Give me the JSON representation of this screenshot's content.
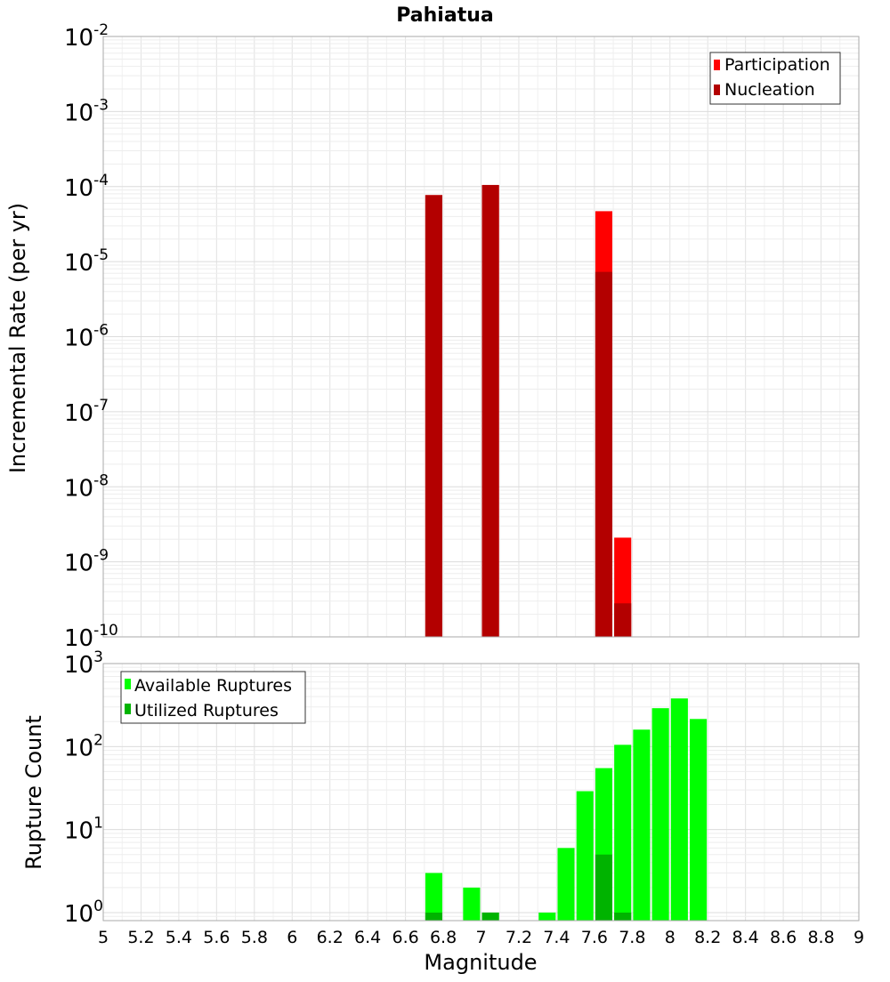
{
  "chart_data": [
    {
      "type": "bar",
      "title": "Pahiatua",
      "ylabel": "Incremental Rate (per yr)",
      "xlabel": "",
      "yscale": "log",
      "xlim": [
        5,
        9
      ],
      "ylim": [
        1e-10,
        0.01
      ],
      "y_tick_exponents": [
        "-10",
        "-9",
        "-8",
        "-7",
        "-6",
        "-5",
        "-4",
        "-3",
        "-2"
      ],
      "y_tick_base": "10",
      "grid": true,
      "legend_position": "top-right",
      "series": [
        {
          "name": "Participation",
          "color": "#ff0000",
          "x": [
            6.75,
            7.05,
            7.65,
            7.75
          ],
          "values": [
            7.7e-05,
            0.000105,
            4.7e-05,
            2.1e-09
          ]
        },
        {
          "name": "Nucleation",
          "color": "#b30000",
          "x": [
            6.75,
            7.05,
            7.65,
            7.75
          ],
          "values": [
            7.7e-05,
            0.000105,
            7.3e-06,
            2.8e-10
          ]
        }
      ]
    },
    {
      "type": "bar",
      "title": "",
      "ylabel": "Rupture Count",
      "xlabel": "Magnitude",
      "yscale": "log",
      "xlim": [
        5,
        9
      ],
      "ylim": [
        0.8,
        1000
      ],
      "x_ticks": [
        "5",
        "5.2",
        "5.4",
        "5.6",
        "5.8",
        "6",
        "6.2",
        "6.4",
        "6.6",
        "6.8",
        "7",
        "7.2",
        "7.4",
        "7.6",
        "7.8",
        "8",
        "8.2",
        "8.4",
        "8.6",
        "8.8",
        "9"
      ],
      "y_tick_exponents": [
        "0",
        "1",
        "2",
        "3"
      ],
      "y_tick_base": "10",
      "grid": true,
      "legend_position": "top-left",
      "series": [
        {
          "name": "Available Ruptures",
          "color": "#00ff00",
          "x": [
            6.75,
            6.95,
            7.05,
            7.35,
            7.45,
            7.55,
            7.65,
            7.75,
            7.85,
            7.95,
            8.05,
            8.15
          ],
          "values": [
            3,
            2,
            1,
            1,
            6,
            29,
            55,
            105,
            160,
            290,
            380,
            215
          ]
        },
        {
          "name": "Utilized Ruptures",
          "color": "#00b300",
          "x": [
            6.75,
            7.05,
            7.65,
            7.75
          ],
          "values": [
            1,
            1,
            5,
            1
          ]
        }
      ]
    }
  ]
}
